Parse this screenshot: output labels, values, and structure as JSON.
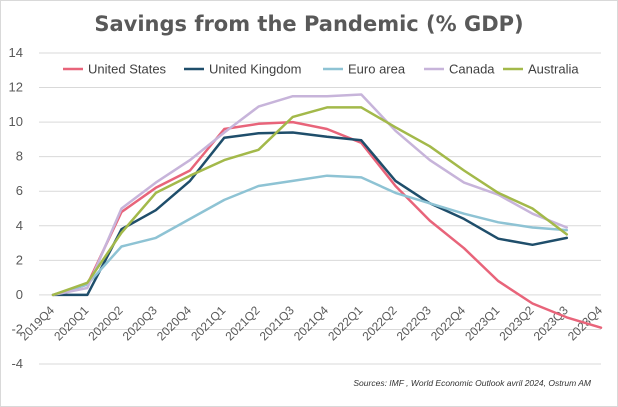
{
  "chart_data": {
    "type": "line",
    "title": "Savings from the Pandemic (% GDP)",
    "xlabel": "",
    "ylabel": "",
    "ylim": [
      -4,
      14
    ],
    "yticks": [
      -4,
      -2,
      0,
      2,
      4,
      6,
      8,
      10,
      12,
      14
    ],
    "grid": true,
    "legend": "top",
    "categories": [
      "2019Q4",
      "2020Q1",
      "2020Q2",
      "2020Q3",
      "2020Q4",
      "2021Q1",
      "2021Q2",
      "2021Q3",
      "2021Q4",
      "2022Q1",
      "2022Q2",
      "2022Q3",
      "2022Q4",
      "2023Q1",
      "2023Q2",
      "2023Q3",
      "2023Q4"
    ],
    "series": [
      {
        "name": "United States",
        "color": "#e8647a",
        "values": [
          0,
          0.6,
          4.8,
          6.2,
          7.2,
          9.6,
          9.9,
          10.0,
          9.6,
          8.8,
          6.3,
          4.3,
          2.7,
          0.8,
          -0.5,
          -1.3,
          -1.9
        ]
      },
      {
        "name": "United Kingdom",
        "color": "#1f4e6b",
        "values": [
          0,
          0,
          3.8,
          4.9,
          6.6,
          9.1,
          9.35,
          9.4,
          9.15,
          8.95,
          6.6,
          5.3,
          4.4,
          3.25,
          2.9,
          3.3,
          null
        ]
      },
      {
        "name": "Euro area",
        "color": "#8ec3d4",
        "values": [
          0,
          0.6,
          2.8,
          3.3,
          4.4,
          5.5,
          6.3,
          6.6,
          6.9,
          6.8,
          5.9,
          5.3,
          4.7,
          4.2,
          3.9,
          3.75,
          null
        ]
      },
      {
        "name": "Canada",
        "color": "#c7b4da",
        "values": [
          0,
          0.4,
          5.0,
          6.5,
          7.8,
          9.4,
          10.9,
          11.5,
          11.5,
          11.6,
          9.5,
          7.8,
          6.5,
          5.8,
          4.7,
          3.9,
          null
        ]
      },
      {
        "name": "Australia",
        "color": "#a3b94a",
        "values": [
          0,
          0.7,
          3.6,
          5.9,
          6.9,
          7.8,
          8.4,
          10.3,
          10.85,
          10.85,
          9.7,
          8.6,
          7.2,
          5.9,
          5.0,
          3.5,
          null
        ]
      }
    ]
  },
  "source_note": "Sources: IMF , World Economic Outlook avril 2024, Ostrum AM"
}
